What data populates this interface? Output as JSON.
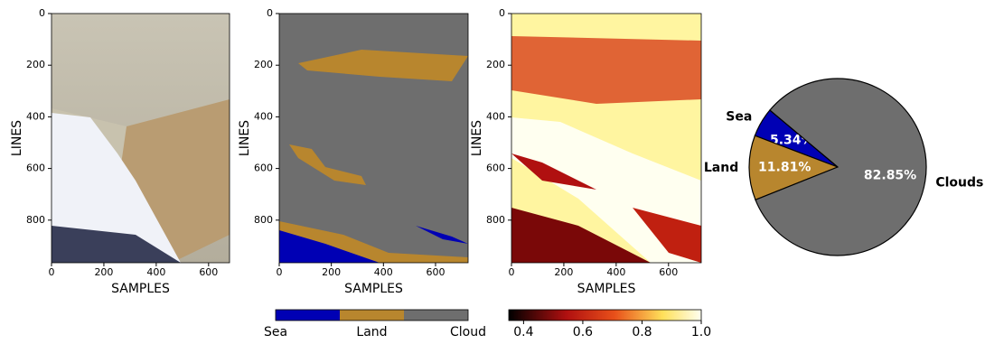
{
  "chart_data": [
    {
      "type": "image",
      "xlabel": "SAMPLES",
      "ylabel": "LINES",
      "xlim": [
        0,
        680
      ],
      "ylim": [
        965,
        0
      ],
      "xticks": [
        0,
        200,
        400,
        600
      ],
      "yticks": [
        0,
        200,
        400,
        600,
        800
      ]
    },
    {
      "type": "image",
      "xlabel": "SAMPLES",
      "ylabel": "LINES",
      "xlim": [
        0,
        725
      ],
      "ylim": [
        965,
        0
      ],
      "xticks": [
        0,
        200,
        400,
        600
      ],
      "yticks": [
        0,
        200,
        400,
        600,
        800
      ],
      "colorbar": {
        "categories": [
          "Sea",
          "Land",
          "Cloud"
        ],
        "colors": [
          "#0000b4",
          "#b8862e",
          "#6e6e6e"
        ]
      }
    },
    {
      "type": "image",
      "xlabel": "SAMPLES",
      "ylabel": "LINES",
      "xlim": [
        0,
        725
      ],
      "ylim": [
        965,
        0
      ],
      "xticks": [
        0,
        200,
        400,
        600
      ],
      "yticks": [
        0,
        200,
        400,
        600,
        800
      ],
      "colorbar": {
        "clim": [
          0.35,
          1.0
        ],
        "ticks": [
          0.4,
          0.6,
          0.8,
          {
            "value": 1.0,
            "label": "1.0"
          }
        ]
      }
    },
    {
      "type": "pie",
      "categories": [
        "Sea",
        "Land",
        "Clouds"
      ],
      "values": [
        5.34,
        11.81,
        82.85
      ],
      "value_labels": [
        "5.34%",
        "11.81%",
        "82.85%"
      ],
      "colors": [
        "#0000b4",
        "#b8862e",
        "#6e6e6e"
      ]
    }
  ]
}
